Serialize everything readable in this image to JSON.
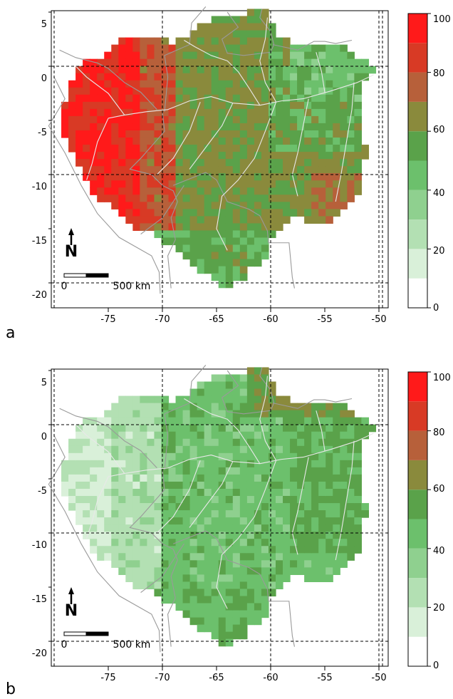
{
  "panels": [
    {
      "label": "a",
      "scale_bar": {
        "start_label": "0",
        "end_label": "500 km"
      },
      "north_label": "N",
      "x_ticks": [
        "-75",
        "-70",
        "-65",
        "-60",
        "-55",
        "-50"
      ],
      "y_ticks": [
        "5",
        "0",
        "-5",
        "-10",
        "-15",
        "-20"
      ],
      "legend": {
        "ticks": [
          "100",
          "80",
          "60",
          "40",
          "20",
          "0"
        ]
      }
    },
    {
      "label": "b",
      "scale_bar": {
        "start_label": "0",
        "end_label": "500 km"
      },
      "north_label": "N",
      "x_ticks": [
        "-75",
        "-70",
        "-65",
        "-60",
        "-55",
        "-50"
      ],
      "y_ticks": [
        "5",
        "0",
        "-5",
        "-10",
        "-15",
        "-20"
      ],
      "legend": {
        "ticks": [
          "100",
          "80",
          "60",
          "40",
          "20",
          "0"
        ]
      }
    }
  ],
  "legend_colors": [
    "#ffffff",
    "#d9f0d9",
    "#b3e0b3",
    "#8fd08f",
    "#6cc06c",
    "#5aa24a",
    "#8a8a3c",
    "#b7603a",
    "#d83a25",
    "#ff1a1a"
  ],
  "grid_lines": {
    "dashed": true
  },
  "colors": {
    "river": "#e8e8e8",
    "border": "#9a9a9a",
    "grid": "#000000"
  }
}
